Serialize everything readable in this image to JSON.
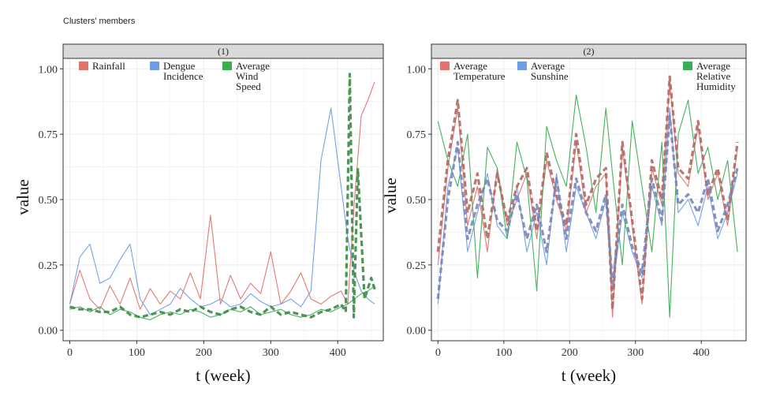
{
  "figure": {
    "title": "Clusters' members"
  },
  "colors": {
    "Rainfall": "#E0736C",
    "Dengue Incidence": "#6E9DE8",
    "Average Wind Speed": "#3AAE55",
    "Average Temperature": "#E0736C",
    "Average Sunshine": "#6E9DE8",
    "Average Relative Humidity": "#3AAE55",
    "overlay_dark_green": "#3C8A45",
    "overlay_dark_red": "#B06A64",
    "overlay_dark_blue": "#7A86B8",
    "panel_bg": "#ffffff",
    "grid": "#EBEBEB",
    "strip_bg": "#D9D9D9"
  },
  "chart_data": [
    {
      "type": "line",
      "panel_label": "(1)",
      "xlabel": "t (week)",
      "ylabel": "value",
      "xlim": [
        -10,
        468
      ],
      "ylim": [
        -0.04,
        1.04
      ],
      "xticks": [
        "0",
        "100",
        "200",
        "300",
        "400"
      ],
      "yticks": [
        "0.00",
        "0.25",
        "0.50",
        "0.75",
        "1.00"
      ],
      "grid": true,
      "legend_position": "top",
      "legend": [
        [
          "Rainfall"
        ],
        [
          "Dengue",
          "Incidence"
        ],
        [
          "Average",
          "Wind",
          "Speed"
        ]
      ],
      "series": [
        {
          "name": "Rainfall",
          "style": "solid",
          "x": [
            0,
            15,
            30,
            45,
            60,
            75,
            90,
            105,
            120,
            135,
            150,
            165,
            180,
            195,
            210,
            225,
            240,
            255,
            270,
            285,
            300,
            315,
            330,
            345,
            360,
            375,
            390,
            405,
            415,
            425,
            435,
            445,
            455
          ],
          "values": [
            0.1,
            0.23,
            0.12,
            0.08,
            0.17,
            0.1,
            0.2,
            0.08,
            0.16,
            0.1,
            0.15,
            0.12,
            0.22,
            0.12,
            0.44,
            0.1,
            0.21,
            0.12,
            0.18,
            0.14,
            0.3,
            0.1,
            0.15,
            0.22,
            0.12,
            0.1,
            0.13,
            0.15,
            0.1,
            0.5,
            0.82,
            0.88,
            0.95
          ]
        },
        {
          "name": "Dengue Incidence",
          "style": "solid",
          "x": [
            0,
            15,
            30,
            45,
            60,
            75,
            90,
            105,
            120,
            135,
            150,
            165,
            180,
            195,
            210,
            225,
            240,
            255,
            270,
            285,
            300,
            315,
            330,
            345,
            360,
            375,
            390,
            405,
            415,
            425,
            435,
            445,
            455
          ],
          "values": [
            0.1,
            0.28,
            0.33,
            0.18,
            0.2,
            0.27,
            0.33,
            0.12,
            0.06,
            0.08,
            0.1,
            0.16,
            0.12,
            0.09,
            0.1,
            0.12,
            0.09,
            0.1,
            0.14,
            0.11,
            0.09,
            0.1,
            0.12,
            0.09,
            0.15,
            0.65,
            0.85,
            0.55,
            0.35,
            0.22,
            0.15,
            0.12,
            0.1
          ]
        },
        {
          "name": "Average Wind Speed",
          "style": "solid",
          "x": [
            0,
            15,
            30,
            45,
            60,
            75,
            90,
            105,
            120,
            135,
            150,
            165,
            180,
            195,
            210,
            225,
            240,
            255,
            270,
            285,
            300,
            315,
            330,
            345,
            360,
            375,
            390,
            405,
            415,
            425,
            435,
            445,
            455
          ],
          "values": [
            0.08,
            0.09,
            0.07,
            0.09,
            0.06,
            0.08,
            0.07,
            0.05,
            0.04,
            0.06,
            0.07,
            0.06,
            0.08,
            0.07,
            0.05,
            0.06,
            0.08,
            0.07,
            0.09,
            0.06,
            0.07,
            0.08,
            0.06,
            0.05,
            0.06,
            0.08,
            0.07,
            0.09,
            0.1,
            0.12,
            0.14,
            0.15,
            0.17
          ]
        },
        {
          "name": "overlay_dashed_green",
          "style": "dashed",
          "x": [
            0,
            15,
            30,
            45,
            60,
            75,
            90,
            105,
            120,
            135,
            150,
            165,
            180,
            195,
            210,
            225,
            240,
            255,
            270,
            285,
            300,
            315,
            330,
            345,
            360,
            375,
            390,
            405,
            412,
            418,
            424,
            430,
            440,
            450,
            456
          ],
          "values": [
            0.09,
            0.08,
            0.08,
            0.07,
            0.07,
            0.09,
            0.06,
            0.05,
            0.06,
            0.07,
            0.06,
            0.08,
            0.07,
            0.09,
            0.07,
            0.06,
            0.08,
            0.09,
            0.07,
            0.06,
            0.09,
            0.06,
            0.07,
            0.06,
            0.05,
            0.07,
            0.08,
            0.1,
            0.07,
            0.98,
            0.05,
            0.62,
            0.12,
            0.2,
            0.15
          ]
        }
      ]
    },
    {
      "type": "line",
      "panel_label": "(2)",
      "xlabel": "t (week)",
      "ylabel": "value",
      "xlim": [
        -10,
        468
      ],
      "ylim": [
        -0.04,
        1.04
      ],
      "xticks": [
        "0",
        "100",
        "200",
        "300",
        "400"
      ],
      "yticks": [
        "0.00",
        "0.25",
        "0.50",
        "0.75",
        "1.00"
      ],
      "grid": true,
      "legend_position": "top",
      "legend": [
        [
          "Average",
          "Temperature"
        ],
        [
          "Average",
          "Sunshine"
        ],
        [
          "Average",
          "Relative",
          "Humidity"
        ]
      ],
      "series": [
        {
          "name": "Average Temperature",
          "style": "solid",
          "x": [
            0,
            15,
            30,
            45,
            60,
            75,
            90,
            105,
            120,
            135,
            150,
            165,
            180,
            195,
            210,
            225,
            240,
            255,
            265,
            280,
            295,
            310,
            325,
            340,
            352,
            365,
            380,
            395,
            410,
            425,
            440,
            455
          ],
          "values": [
            0.25,
            0.62,
            0.85,
            0.4,
            0.55,
            0.3,
            0.62,
            0.4,
            0.5,
            0.6,
            0.35,
            0.65,
            0.5,
            0.38,
            0.72,
            0.45,
            0.55,
            0.6,
            0.05,
            0.7,
            0.4,
            0.1,
            0.62,
            0.48,
            0.95,
            0.6,
            0.55,
            0.78,
            0.5,
            0.6,
            0.4,
            0.7
          ]
        },
        {
          "name": "Average Sunshine",
          "style": "solid",
          "x": [
            0,
            15,
            30,
            45,
            60,
            75,
            90,
            105,
            120,
            135,
            150,
            165,
            180,
            195,
            210,
            225,
            240,
            255,
            265,
            280,
            295,
            310,
            325,
            340,
            352,
            365,
            380,
            395,
            410,
            425,
            440,
            455
          ],
          "values": [
            0.1,
            0.55,
            0.7,
            0.3,
            0.45,
            0.6,
            0.4,
            0.35,
            0.55,
            0.3,
            0.45,
            0.25,
            0.6,
            0.3,
            0.55,
            0.45,
            0.35,
            0.5,
            0.15,
            0.45,
            0.3,
            0.2,
            0.55,
            0.4,
            0.85,
            0.45,
            0.5,
            0.4,
            0.55,
            0.35,
            0.45,
            0.6
          ]
        },
        {
          "name": "Average Relative Humidity",
          "style": "solid",
          "x": [
            0,
            15,
            30,
            45,
            60,
            75,
            90,
            105,
            120,
            135,
            150,
            165,
            180,
            195,
            210,
            225,
            240,
            255,
            265,
            280,
            295,
            310,
            325,
            340,
            352,
            365,
            380,
            395,
            410,
            425,
            440,
            455
          ],
          "values": [
            0.8,
            0.65,
            0.55,
            0.75,
            0.2,
            0.7,
            0.62,
            0.35,
            0.72,
            0.58,
            0.15,
            0.78,
            0.65,
            0.55,
            0.9,
            0.7,
            0.45,
            0.85,
            0.6,
            0.25,
            0.8,
            0.55,
            0.3,
            0.72,
            0.05,
            0.75,
            0.88,
            0.6,
            0.7,
            0.5,
            0.65,
            0.3
          ]
        },
        {
          "name": "overlay_dashed_red",
          "style": "dashed",
          "x": [
            0,
            15,
            30,
            45,
            60,
            75,
            90,
            105,
            120,
            135,
            150,
            165,
            180,
            195,
            210,
            225,
            240,
            255,
            265,
            280,
            295,
            310,
            325,
            340,
            352,
            365,
            380,
            395,
            410,
            425,
            440,
            455
          ],
          "values": [
            0.3,
            0.65,
            0.88,
            0.45,
            0.6,
            0.35,
            0.6,
            0.42,
            0.55,
            0.62,
            0.38,
            0.68,
            0.52,
            0.4,
            0.75,
            0.48,
            0.58,
            0.62,
            0.08,
            0.72,
            0.42,
            0.12,
            0.65,
            0.5,
            0.97,
            0.62,
            0.58,
            0.8,
            0.52,
            0.62,
            0.42,
            0.72
          ]
        },
        {
          "name": "overlay_dashed_blue",
          "style": "dashed",
          "x": [
            0,
            15,
            30,
            45,
            60,
            75,
            90,
            105,
            120,
            135,
            150,
            165,
            180,
            195,
            210,
            225,
            240,
            255,
            265,
            280,
            295,
            310,
            325,
            340,
            352,
            365,
            380,
            395,
            410,
            425,
            440,
            455
          ],
          "values": [
            0.12,
            0.5,
            0.72,
            0.35,
            0.48,
            0.58,
            0.42,
            0.38,
            0.52,
            0.35,
            0.48,
            0.3,
            0.58,
            0.35,
            0.58,
            0.45,
            0.38,
            0.52,
            0.18,
            0.48,
            0.32,
            0.22,
            0.58,
            0.42,
            0.82,
            0.48,
            0.52,
            0.45,
            0.58,
            0.38,
            0.48,
            0.62
          ]
        }
      ]
    }
  ]
}
